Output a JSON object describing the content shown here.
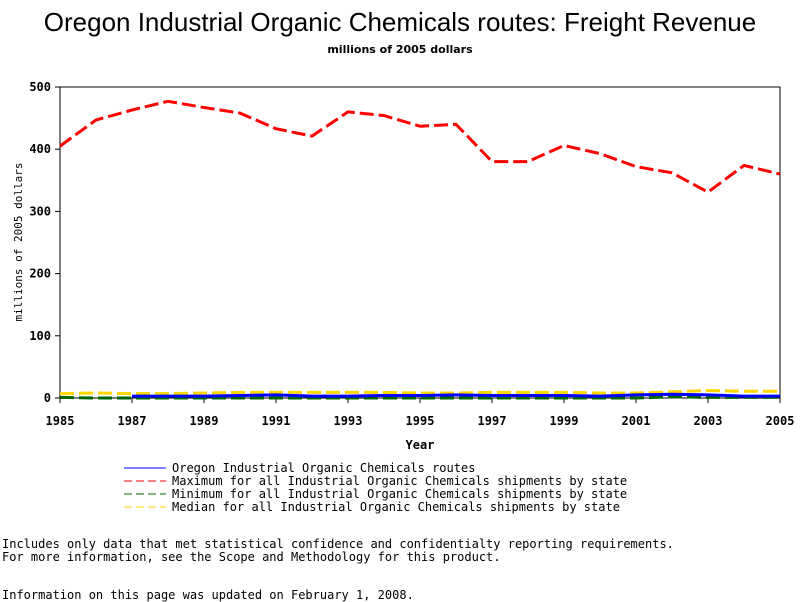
{
  "chart_data": {
    "type": "line",
    "title": "Oregon Industrial Organic Chemicals routes: Freight Revenue",
    "subtitle": "millions of 2005 dollars",
    "xlabel": "Year",
    "ylabel": "millions of 2005 dollars",
    "xlim": [
      1985,
      2005
    ],
    "ylim": [
      0,
      500
    ],
    "x_ticks": [
      "1985",
      "1987",
      "1989",
      "1991",
      "1993",
      "1995",
      "1997",
      "1999",
      "2001",
      "2003",
      "2005"
    ],
    "y_ticks": [
      "0",
      "100",
      "200",
      "300",
      "400",
      "500"
    ],
    "grid": false,
    "legend_position": "bottom",
    "x": [
      1985,
      1986,
      1987,
      1988,
      1989,
      1990,
      1991,
      1992,
      1993,
      1994,
      1995,
      1996,
      1997,
      1998,
      1999,
      2000,
      2001,
      2002,
      2003,
      2004,
      2005
    ],
    "series": [
      {
        "name": "Oregon Industrial Organic Chemicals routes",
        "color": "#0000ff",
        "dash": "solid",
        "values": [
          null,
          null,
          3,
          3,
          3,
          4,
          5,
          3,
          3,
          4,
          4,
          5,
          4,
          4,
          4,
          3,
          5,
          6,
          5,
          3,
          3
        ]
      },
      {
        "name": "Maximum for all Industrial Organic Chemicals shipments by state",
        "color": "#ff0000",
        "dash": "dashed",
        "values": [
          405,
          447,
          463,
          477,
          467,
          458,
          433,
          421,
          460,
          454,
          437,
          440,
          380,
          380,
          406,
          393,
          372,
          362,
          331,
          374,
          360
        ]
      },
      {
        "name": "Minimum for all Industrial Organic Chemicals shipments by state",
        "color": "#006400",
        "dash": "dashed",
        "values": [
          1,
          0,
          0,
          0,
          0,
          0,
          0,
          0,
          0,
          0,
          0,
          0,
          0,
          0,
          0,
          0,
          0,
          2,
          1,
          1,
          1
        ]
      },
      {
        "name": "Median for all Industrial Organic Chemicals shipments by state",
        "color": "#ffd700",
        "dash": "dashed",
        "values": [
          7,
          8,
          7,
          7,
          8,
          9,
          9,
          9,
          9,
          9,
          8,
          8,
          9,
          9,
          9,
          8,
          8,
          10,
          12,
          11,
          11
        ]
      }
    ]
  },
  "notes": {
    "line1": "Includes only data that met statistical confidence and confidentialty reporting requirements.",
    "line2": "For more information, see the Scope and Methodology for this product.",
    "updated": "Information on this page was updated on February 1, 2008."
  }
}
